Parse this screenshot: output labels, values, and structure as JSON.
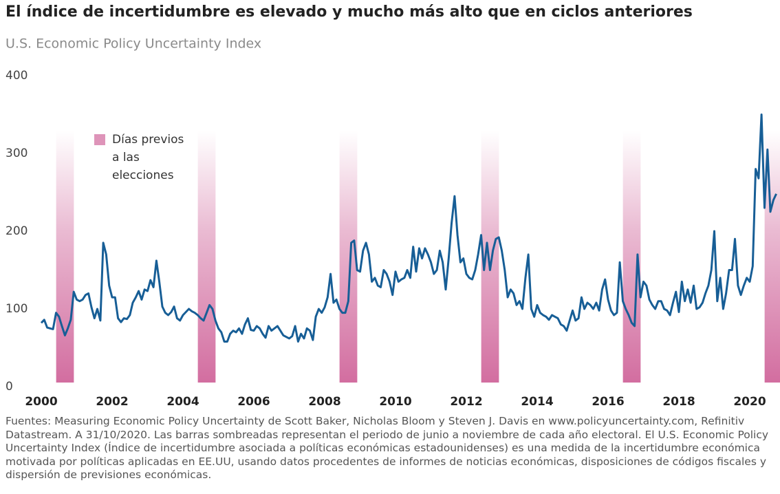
{
  "chart_data": {
    "type": "line",
    "title": "El índice de incertidumbre es elevado y mucho más alto que en ciclos anteriores",
    "subtitle": "U.S. Economic Policy Uncertainty Index",
    "band_legend": [
      "Días previos",
      "a las",
      "elecciones"
    ],
    "band_color": "#d0669b",
    "shaded_ranges": [
      [
        2000.42,
        2000.92
      ],
      [
        2004.42,
        2004.92
      ],
      [
        2008.42,
        2008.92
      ],
      [
        2012.42,
        2012.92
      ],
      [
        2016.42,
        2016.92
      ],
      [
        2020.42,
        2020.92
      ]
    ],
    "xlim": [
      2000,
      2020.8
    ],
    "xticks": [
      2000,
      2002,
      2004,
      2006,
      2008,
      2010,
      2012,
      2014,
      2016,
      2018,
      2020
    ],
    "ylim": [
      0,
      400
    ],
    "yticks": [
      0,
      100,
      200,
      300,
      400
    ],
    "grid": false,
    "series": [
      {
        "color": "#175e96",
        "x": [
          2000,
          2000.083,
          2000.167,
          2000.25,
          2000.333,
          2000.417,
          2000.5,
          2000.583,
          2000.667,
          2000.75,
          2000.833,
          2000.917,
          2001,
          2001.083,
          2001.167,
          2001.25,
          2001.333,
          2001.417,
          2001.5,
          2001.583,
          2001.667,
          2001.75,
          2001.833,
          2001.917,
          2002,
          2002.083,
          2002.167,
          2002.25,
          2002.333,
          2002.417,
          2002.5,
          2002.583,
          2002.667,
          2002.75,
          2002.833,
          2002.917,
          2003,
          2003.083,
          2003.167,
          2003.25,
          2003.333,
          2003.417,
          2003.5,
          2003.583,
          2003.667,
          2003.75,
          2003.833,
          2003.917,
          2004,
          2004.083,
          2004.167,
          2004.25,
          2004.333,
          2004.417,
          2004.5,
          2004.583,
          2004.667,
          2004.75,
          2004.833,
          2004.917,
          2005,
          2005.083,
          2005.167,
          2005.25,
          2005.333,
          2005.417,
          2005.5,
          2005.583,
          2005.667,
          2005.75,
          2005.833,
          2005.917,
          2006,
          2006.083,
          2006.167,
          2006.25,
          2006.333,
          2006.417,
          2006.5,
          2006.583,
          2006.667,
          2006.75,
          2006.833,
          2006.917,
          2007,
          2007.083,
          2007.167,
          2007.25,
          2007.333,
          2007.417,
          2007.5,
          2007.583,
          2007.667,
          2007.75,
          2007.833,
          2007.917,
          2008,
          2008.083,
          2008.167,
          2008.25,
          2008.333,
          2008.417,
          2008.5,
          2008.583,
          2008.667,
          2008.75,
          2008.833,
          2008.917,
          2009,
          2009.083,
          2009.167,
          2009.25,
          2009.333,
          2009.417,
          2009.5,
          2009.583,
          2009.667,
          2009.75,
          2009.833,
          2009.917,
          2010,
          2010.083,
          2010.167,
          2010.25,
          2010.333,
          2010.417,
          2010.5,
          2010.583,
          2010.667,
          2010.75,
          2010.833,
          2010.917,
          2011,
          2011.083,
          2011.167,
          2011.25,
          2011.333,
          2011.417,
          2011.5,
          2011.583,
          2011.667,
          2011.75,
          2011.833,
          2011.917,
          2012,
          2012.083,
          2012.167,
          2012.25,
          2012.333,
          2012.417,
          2012.5,
          2012.583,
          2012.667,
          2012.75,
          2012.833,
          2012.917,
          2013,
          2013.083,
          2013.167,
          2013.25,
          2013.333,
          2013.417,
          2013.5,
          2013.583,
          2013.667,
          2013.75,
          2013.833,
          2013.917,
          2014,
          2014.083,
          2014.167,
          2014.25,
          2014.333,
          2014.417,
          2014.5,
          2014.583,
          2014.667,
          2014.75,
          2014.833,
          2014.917,
          2015,
          2015.083,
          2015.167,
          2015.25,
          2015.333,
          2015.417,
          2015.5,
          2015.583,
          2015.667,
          2015.75,
          2015.833,
          2015.917,
          2016,
          2016.083,
          2016.167,
          2016.25,
          2016.333,
          2016.417,
          2016.5,
          2016.583,
          2016.667,
          2016.75,
          2016.833,
          2016.917,
          2017,
          2017.083,
          2017.167,
          2017.25,
          2017.333,
          2017.417,
          2017.5,
          2017.583,
          2017.667,
          2017.75,
          2017.833,
          2017.917,
          2018,
          2018.083,
          2018.167,
          2018.25,
          2018.333,
          2018.417,
          2018.5,
          2018.583,
          2018.667,
          2018.75,
          2018.833,
          2018.917,
          2019,
          2019.083,
          2019.167,
          2019.25,
          2019.333,
          2019.417,
          2019.5,
          2019.583,
          2019.667,
          2019.75,
          2019.833,
          2019.917,
          2020,
          2020.083,
          2020.167,
          2020.25,
          2020.333,
          2020.417,
          2020.5,
          2020.583,
          2020.667,
          2020.75
        ],
        "values": [
          82,
          86,
          76,
          75,
          74,
          95,
          90,
          78,
          66,
          75,
          86,
          122,
          112,
          110,
          112,
          118,
          120,
          102,
          88,
          100,
          85,
          185,
          170,
          130,
          115,
          115,
          88,
          83,
          88,
          87,
          92,
          108,
          115,
          123,
          112,
          125,
          123,
          137,
          128,
          162,
          135,
          103,
          95,
          92,
          96,
          103,
          88,
          85,
          92,
          96,
          100,
          97,
          95,
          92,
          88,
          85,
          95,
          105,
          100,
          85,
          75,
          70,
          58,
          58,
          68,
          72,
          70,
          75,
          68,
          80,
          88,
          73,
          72,
          78,
          75,
          68,
          63,
          78,
          72,
          75,
          78,
          72,
          66,
          64,
          62,
          65,
          78,
          58,
          68,
          62,
          75,
          72,
          60,
          90,
          100,
          95,
          102,
          115,
          145,
          108,
          112,
          100,
          95,
          95,
          110,
          185,
          188,
          150,
          148,
          175,
          185,
          170,
          135,
          140,
          130,
          128,
          150,
          145,
          135,
          118,
          148,
          135,
          138,
          140,
          150,
          140,
          180,
          148,
          178,
          165,
          178,
          170,
          160,
          145,
          150,
          175,
          160,
          125,
          165,
          210,
          245,
          195,
          160,
          165,
          145,
          140,
          138,
          150,
          170,
          195,
          150,
          185,
          150,
          175,
          190,
          192,
          175,
          150,
          115,
          125,
          120,
          105,
          110,
          100,
          140,
          170,
          100,
          90,
          105,
          95,
          92,
          90,
          86,
          92,
          90,
          88,
          80,
          78,
          72,
          85,
          98,
          85,
          88,
          115,
          100,
          108,
          105,
          100,
          108,
          98,
          125,
          138,
          112,
          98,
          92,
          95,
          160,
          110,
          100,
          92,
          82,
          78,
          170,
          115,
          135,
          130,
          112,
          105,
          100,
          110,
          110,
          100,
          98,
          92,
          108,
          122,
          96,
          135,
          110,
          125,
          108,
          130,
          100,
          102,
          108,
          120,
          130,
          150,
          200,
          110,
          140,
          100,
          120,
          150,
          150,
          190,
          130,
          118,
          130,
          140,
          135,
          155,
          280,
          268,
          350,
          230,
          305,
          225,
          240,
          248
        ]
      }
    ],
    "footnote": "Fuentes: Measuring Economic Policy Uncertainty de Scott Baker, Nicholas Bloom y Steven J. Davis en www.policyuncertainty.com, Refinitiv Datastream. A 31/10/2020. Las barras sombreadas representan el periodo de junio a noviembre de cada año electoral. El U.S. Economic Policy Uncertainty Index (Índice de incertidumbre asociada a políticas económicas estadounidenses) es una medida de la incertidumbre económica motivada por políticas aplicadas en EE.UU, usando datos procedentes de informes de noticias económicas, disposiciones de códigos fiscales y dispersión de previsiones económicas."
  }
}
